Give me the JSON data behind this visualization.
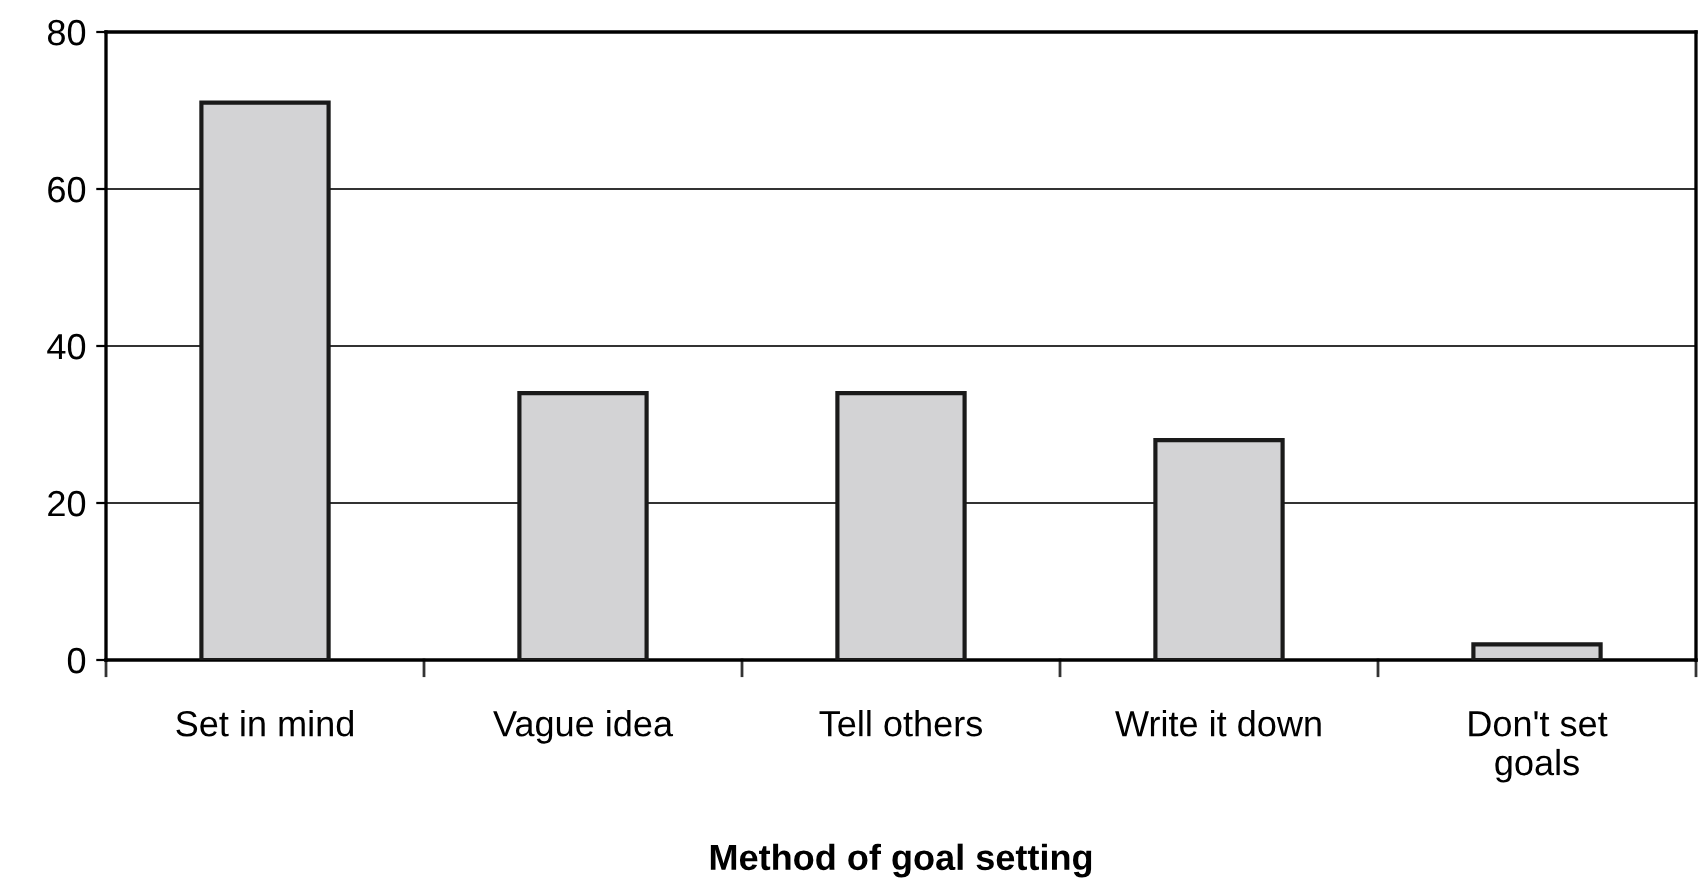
{
  "chart_data": {
    "type": "bar",
    "xlabel": "Method of goal setting",
    "categories": [
      "Set in mind",
      "Vague idea",
      "Tell others",
      "Write it down",
      "Don't set\ngoals"
    ],
    "values": [
      71,
      34,
      34,
      28,
      2
    ],
    "color": "#d3d3d5",
    "ylim": [
      0,
      80
    ],
    "yticks": [
      0,
      20,
      40,
      60,
      80
    ],
    "grid": "y",
    "legend": false
  }
}
